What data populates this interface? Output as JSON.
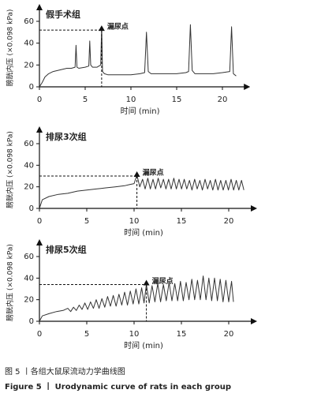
{
  "chart_data": [
    {
      "type": "line",
      "title": "假手术组",
      "x_label": "时间 (min)",
      "y_label": "膀胱内压 (×0.098 kPa)",
      "xlim": [
        0,
        22
      ],
      "ylim": [
        0,
        60
      ],
      "xticks": [
        0,
        5,
        10,
        15,
        20
      ],
      "yticks": [
        0,
        20,
        40,
        60
      ],
      "color": "#333333",
      "x": [
        0,
        0.3,
        0.6,
        1,
        1.5,
        2,
        2.5,
        3,
        3.5,
        3.9,
        4.0,
        4.1,
        4.3,
        5,
        5.4,
        5.5,
        5.6,
        5.8,
        6.3,
        6.7,
        6.8,
        6.9,
        7.1,
        7.5,
        8,
        9,
        10,
        11,
        11.5,
        11.7,
        11.9,
        12.2,
        13,
        14,
        15,
        16,
        16.3,
        16.5,
        16.7,
        17,
        18,
        19,
        20,
        20.8,
        21,
        21.2,
        21.5
      ],
      "values": [
        0,
        4,
        9,
        12,
        14,
        15,
        16,
        17,
        17,
        18,
        38,
        18,
        17,
        18,
        19,
        42,
        20,
        18,
        18,
        20,
        55,
        14,
        12,
        11,
        11,
        11,
        11,
        12,
        13,
        50,
        14,
        12,
        12,
        12,
        12,
        13,
        14,
        57,
        15,
        12,
        12,
        12,
        13,
        14,
        55,
        12,
        10
      ],
      "annotation": {
        "label": "漏尿点",
        "x": 6.8,
        "y": 52
      }
    },
    {
      "type": "line",
      "title": "排尿3次组",
      "x_label": "时间 (min)",
      "y_label": "膀胱内压 (×0.098 kPa)",
      "xlim": [
        0,
        22
      ],
      "ylim": [
        0,
        60
      ],
      "xticks": [
        0,
        5,
        10,
        15,
        20
      ],
      "yticks": [
        0,
        20,
        40,
        60
      ],
      "color": "#333333",
      "x": [
        0,
        0.3,
        1,
        2,
        3,
        4,
        5,
        6,
        7,
        8,
        9,
        9.5,
        10,
        10.3,
        10.6,
        10.9,
        11.17,
        11.45,
        11.72,
        12.0,
        12.27,
        12.55,
        12.82,
        13.1,
        13.37,
        13.65,
        13.92,
        14.2,
        14.47,
        14.75,
        15.02,
        15.3,
        15.57,
        15.85,
        16.12,
        16.4,
        16.67,
        16.95,
        17.22,
        17.5,
        17.77,
        18.05,
        18.32,
        18.6,
        18.87,
        19.15,
        19.42,
        19.7,
        19.97,
        20.25,
        20.52,
        20.8,
        21.07,
        21.35,
        21.6
      ],
      "values": [
        0,
        8,
        11,
        13,
        14,
        16,
        17,
        18,
        19,
        20,
        21,
        22,
        23,
        31,
        20,
        27,
        18,
        28,
        18,
        27,
        18,
        28,
        19,
        27,
        18,
        27,
        18,
        28,
        18,
        27,
        18,
        27,
        18,
        26,
        17,
        27,
        18,
        26,
        17,
        27,
        18,
        26,
        17,
        27,
        17,
        26,
        17,
        26,
        17,
        27,
        17,
        26,
        17,
        26,
        17
      ],
      "annotation": {
        "label": "漏尿点",
        "x": 10.3,
        "y": 30
      }
    },
    {
      "type": "line",
      "title": "排尿5次组",
      "x_label": "时间 (min)",
      "y_label": "膀胱内压 (×0.098 kPa)",
      "xlim": [
        0,
        22
      ],
      "ylim": [
        0,
        60
      ],
      "xticks": [
        0,
        5,
        10,
        15,
        20
      ],
      "yticks": [
        0,
        20,
        40,
        60
      ],
      "color": "#333333",
      "x": [
        0,
        0.3,
        1,
        1.8,
        2.5,
        3,
        3.3,
        3.6,
        3.9,
        4.2,
        4.5,
        4.8,
        5.1,
        5.4,
        5.7,
        6.0,
        6.3,
        6.6,
        6.9,
        7.2,
        7.5,
        7.8,
        8.1,
        8.4,
        8.7,
        9.0,
        9.3,
        9.6,
        9.9,
        10.2,
        10.5,
        10.8,
        11.05,
        11.3,
        11.6,
        11.9,
        12.2,
        12.5,
        12.8,
        13.1,
        13.4,
        13.7,
        14.0,
        14.3,
        14.6,
        14.9,
        15.2,
        15.5,
        15.8,
        16.1,
        16.4,
        16.7,
        17.0,
        17.3,
        17.6,
        17.9,
        18.2,
        18.5,
        18.8,
        19.1,
        19.4,
        19.7,
        20.0,
        20.3,
        20.5
      ],
      "values": [
        0,
        5,
        7,
        9,
        10,
        12,
        9,
        13,
        10,
        15,
        11,
        17,
        11,
        18,
        12,
        20,
        12,
        21,
        13,
        23,
        14,
        24,
        14,
        25,
        15,
        27,
        15,
        28,
        16,
        30,
        16,
        31,
        17,
        34,
        17,
        33,
        18,
        35,
        18,
        34,
        19,
        36,
        19,
        35,
        19,
        37,
        19,
        36,
        20,
        39,
        20,
        38,
        20,
        42,
        20,
        40,
        19,
        40,
        19,
        39,
        18,
        38,
        18,
        37,
        18
      ],
      "annotation": {
        "label": "漏尿点",
        "x": 11.3,
        "y": 34
      }
    }
  ],
  "caption": {
    "zh": "图 5 丨各组大鼠尿流动力学曲线图",
    "en": "Figure 5 丨 Urodynamic curve of rats in each group"
  }
}
